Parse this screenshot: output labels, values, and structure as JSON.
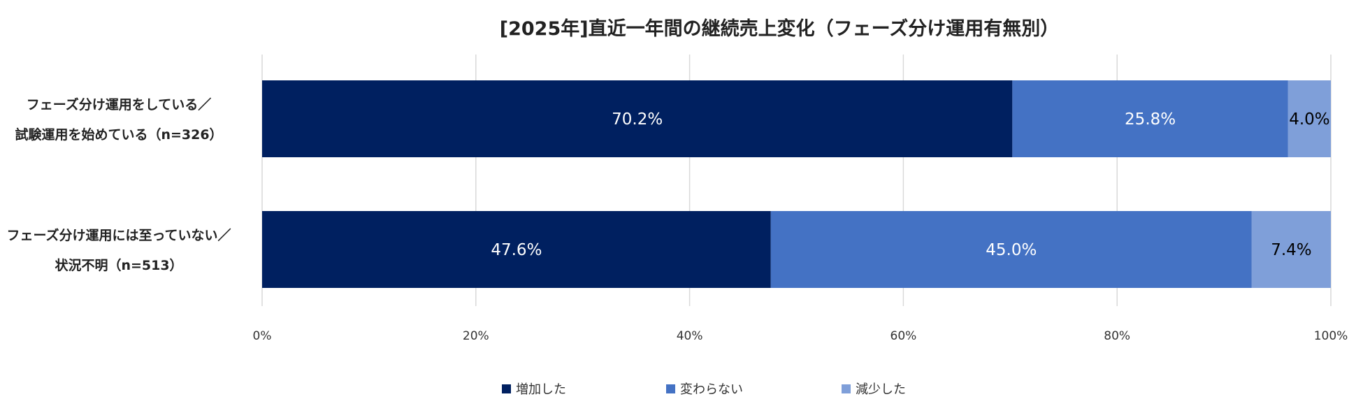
{
  "chart_data": {
    "type": "bar",
    "orientation": "horizontal",
    "stacked": true,
    "title": "[2025年]直近一年間の継続売上変化（フェーズ分け運用有無別）",
    "categories": [
      [
        "フェーズ分け運用をしている／",
        "試験運用を始めている（n=326）"
      ],
      [
        "フェーズ分け運用には至っていない／",
        "状況不明（n=513）"
      ]
    ],
    "series": [
      {
        "name": "増加した",
        "values": [
          70.2,
          47.6
        ],
        "labels": [
          "70.2%",
          "47.6%"
        ],
        "color": "#002060",
        "label_color": "#ffffff"
      },
      {
        "name": "変わらない",
        "values": [
          25.8,
          45.0
        ],
        "labels": [
          "25.8%",
          "45.0%"
        ],
        "color": "#4472C4",
        "label_color": "#ffffff"
      },
      {
        "name": "減少した",
        "values": [
          4.0,
          7.4
        ],
        "labels": [
          "4.0%",
          "7.4%"
        ],
        "color": "#7F9FD9",
        "label_color": "#000000"
      }
    ],
    "xlim": [
      0,
      100
    ],
    "xticks": [
      0,
      20,
      40,
      60,
      80,
      100
    ],
    "xtick_labels": [
      "0%",
      "20%",
      "40%",
      "60%",
      "80%",
      "100%"
    ],
    "grid": true,
    "legend_position": "bottom"
  }
}
